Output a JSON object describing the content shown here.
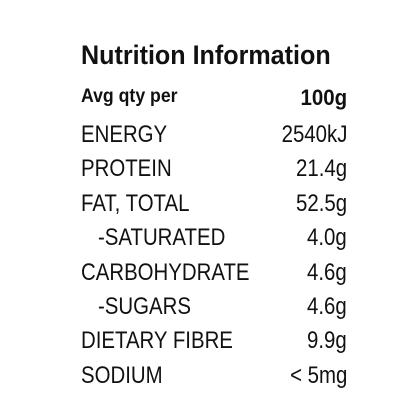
{
  "panel": {
    "title": "Nutrition Information",
    "header": {
      "label": "Avg qty per",
      "value": "100g"
    },
    "rows": [
      {
        "label": "ENERGY",
        "value": "2540kJ"
      },
      {
        "label": "PROTEIN",
        "value": "21.4g"
      },
      {
        "label": "FAT, TOTAL",
        "value": "52.5g"
      },
      {
        "label": "-SATURATED",
        "value": "4.0g"
      },
      {
        "label": "CARBOHYDRATE",
        "value": "4.6g"
      },
      {
        "label": "-SUGARS",
        "value": "4.6g"
      },
      {
        "label": "DIETARY FIBRE",
        "value": "9.9g"
      },
      {
        "label": "SODIUM",
        "value": "< 5mg"
      }
    ]
  },
  "colors": {
    "text": "#111111",
    "background": "#ffffff"
  }
}
